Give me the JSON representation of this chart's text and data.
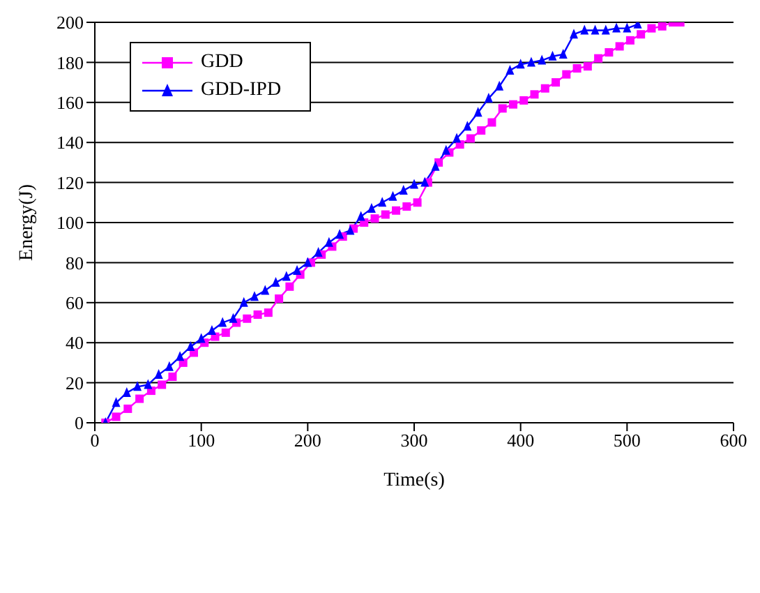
{
  "chart_data": {
    "type": "line",
    "xlabel": "Time(s)",
    "ylabel": "Energy(J)",
    "xlim": [
      0,
      600
    ],
    "xticks": [
      0,
      100,
      200,
      300,
      400,
      500,
      600
    ],
    "ylim": [
      0,
      200
    ],
    "yticks": [
      0,
      20,
      40,
      60,
      80,
      100,
      120,
      140,
      160,
      180,
      200
    ],
    "grid": "y",
    "legend": "top left",
    "line_style": "solid",
    "series": [
      {
        "name": "GDD",
        "color": "#ff00ff",
        "marker": "square",
        "x": [
          10,
          20,
          31,
          42,
          53,
          63,
          73,
          83,
          93,
          103,
          113,
          123,
          133,
          143,
          153,
          163,
          173,
          183,
          193,
          203,
          213,
          223,
          233,
          243,
          253,
          263,
          273,
          283,
          293,
          303,
          313,
          323,
          333,
          343,
          353,
          363,
          373,
          383,
          393,
          403,
          413,
          423,
          433,
          443,
          453,
          463,
          473,
          483,
          493,
          503,
          513,
          523,
          533,
          543,
          550
        ],
        "values": [
          0,
          3,
          7,
          12,
          16,
          19,
          23,
          30,
          35,
          40,
          43,
          45,
          50,
          52,
          54,
          55,
          62,
          68,
          74,
          80,
          84,
          88,
          93,
          97,
          100,
          102,
          104,
          106,
          108,
          110,
          120,
          130,
          135,
          139,
          142,
          146,
          150,
          157,
          159,
          161,
          164,
          167,
          170,
          174,
          177,
          178,
          182,
          185,
          188,
          191,
          194,
          197,
          198,
          200,
          200
        ]
      },
      {
        "name": "GDD-IPD",
        "color": "#0000ff",
        "marker": "triangle",
        "x": [
          10,
          20,
          30,
          40,
          50,
          60,
          70,
          80,
          90,
          100,
          110,
          120,
          130,
          140,
          150,
          160,
          170,
          180,
          190,
          200,
          210,
          220,
          230,
          240,
          250,
          260,
          270,
          280,
          290,
          300,
          310,
          320,
          330,
          340,
          350,
          360,
          370,
          380,
          390,
          400,
          410,
          420,
          430,
          440,
          450,
          460,
          470,
          480,
          490,
          500,
          510
        ],
        "values": [
          0,
          10,
          15,
          18,
          19,
          24,
          28,
          33,
          38,
          42,
          46,
          50,
          52,
          60,
          63,
          66,
          70,
          73,
          76,
          80,
          85,
          90,
          94,
          96,
          103,
          107,
          110,
          113,
          116,
          119,
          120,
          128,
          136,
          142,
          148,
          155,
          162,
          168,
          176,
          179,
          180,
          181,
          183,
          184,
          194,
          196,
          196,
          196,
          197,
          197,
          199
        ]
      }
    ]
  }
}
